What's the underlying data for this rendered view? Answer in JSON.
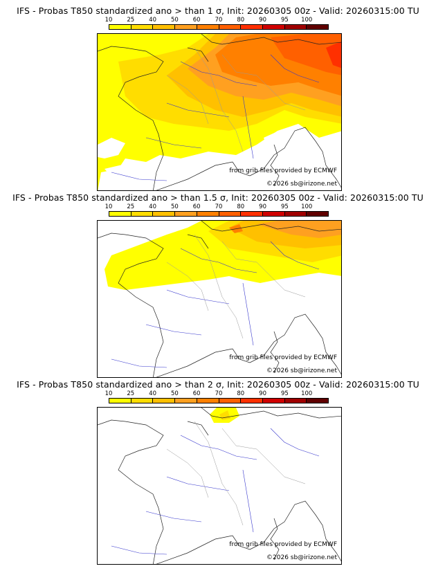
{
  "colorbar": {
    "ticks": [
      "10",
      "25",
      "40",
      "50",
      "60",
      "70",
      "80",
      "90",
      "95",
      "100"
    ],
    "colors": [
      "#ffff00",
      "#ffdd00",
      "#ffc000",
      "#ffa020",
      "#ff8000",
      "#ff6000",
      "#ff3000",
      "#d00000",
      "#a00000",
      "#600000"
    ]
  },
  "credits": {
    "source": "from grib files provided by ECMWF",
    "copyright": "©2026 sb@irizone.net"
  },
  "panels": [
    {
      "title": "IFS - Probas T850  standardized ano > than 1 σ, Init: 20260305 00z - Valid: 20260315:00 TU"
    },
    {
      "title": "IFS - Probas T850  standardized ano > than 1.5 σ, Init: 20260305 00z - Valid: 20260315:00 TU"
    },
    {
      "title": "IFS - Probas T850  standardized ano > than 2 σ, Init: 20260305 00z - Valid: 20260315:00 TU"
    }
  ]
}
